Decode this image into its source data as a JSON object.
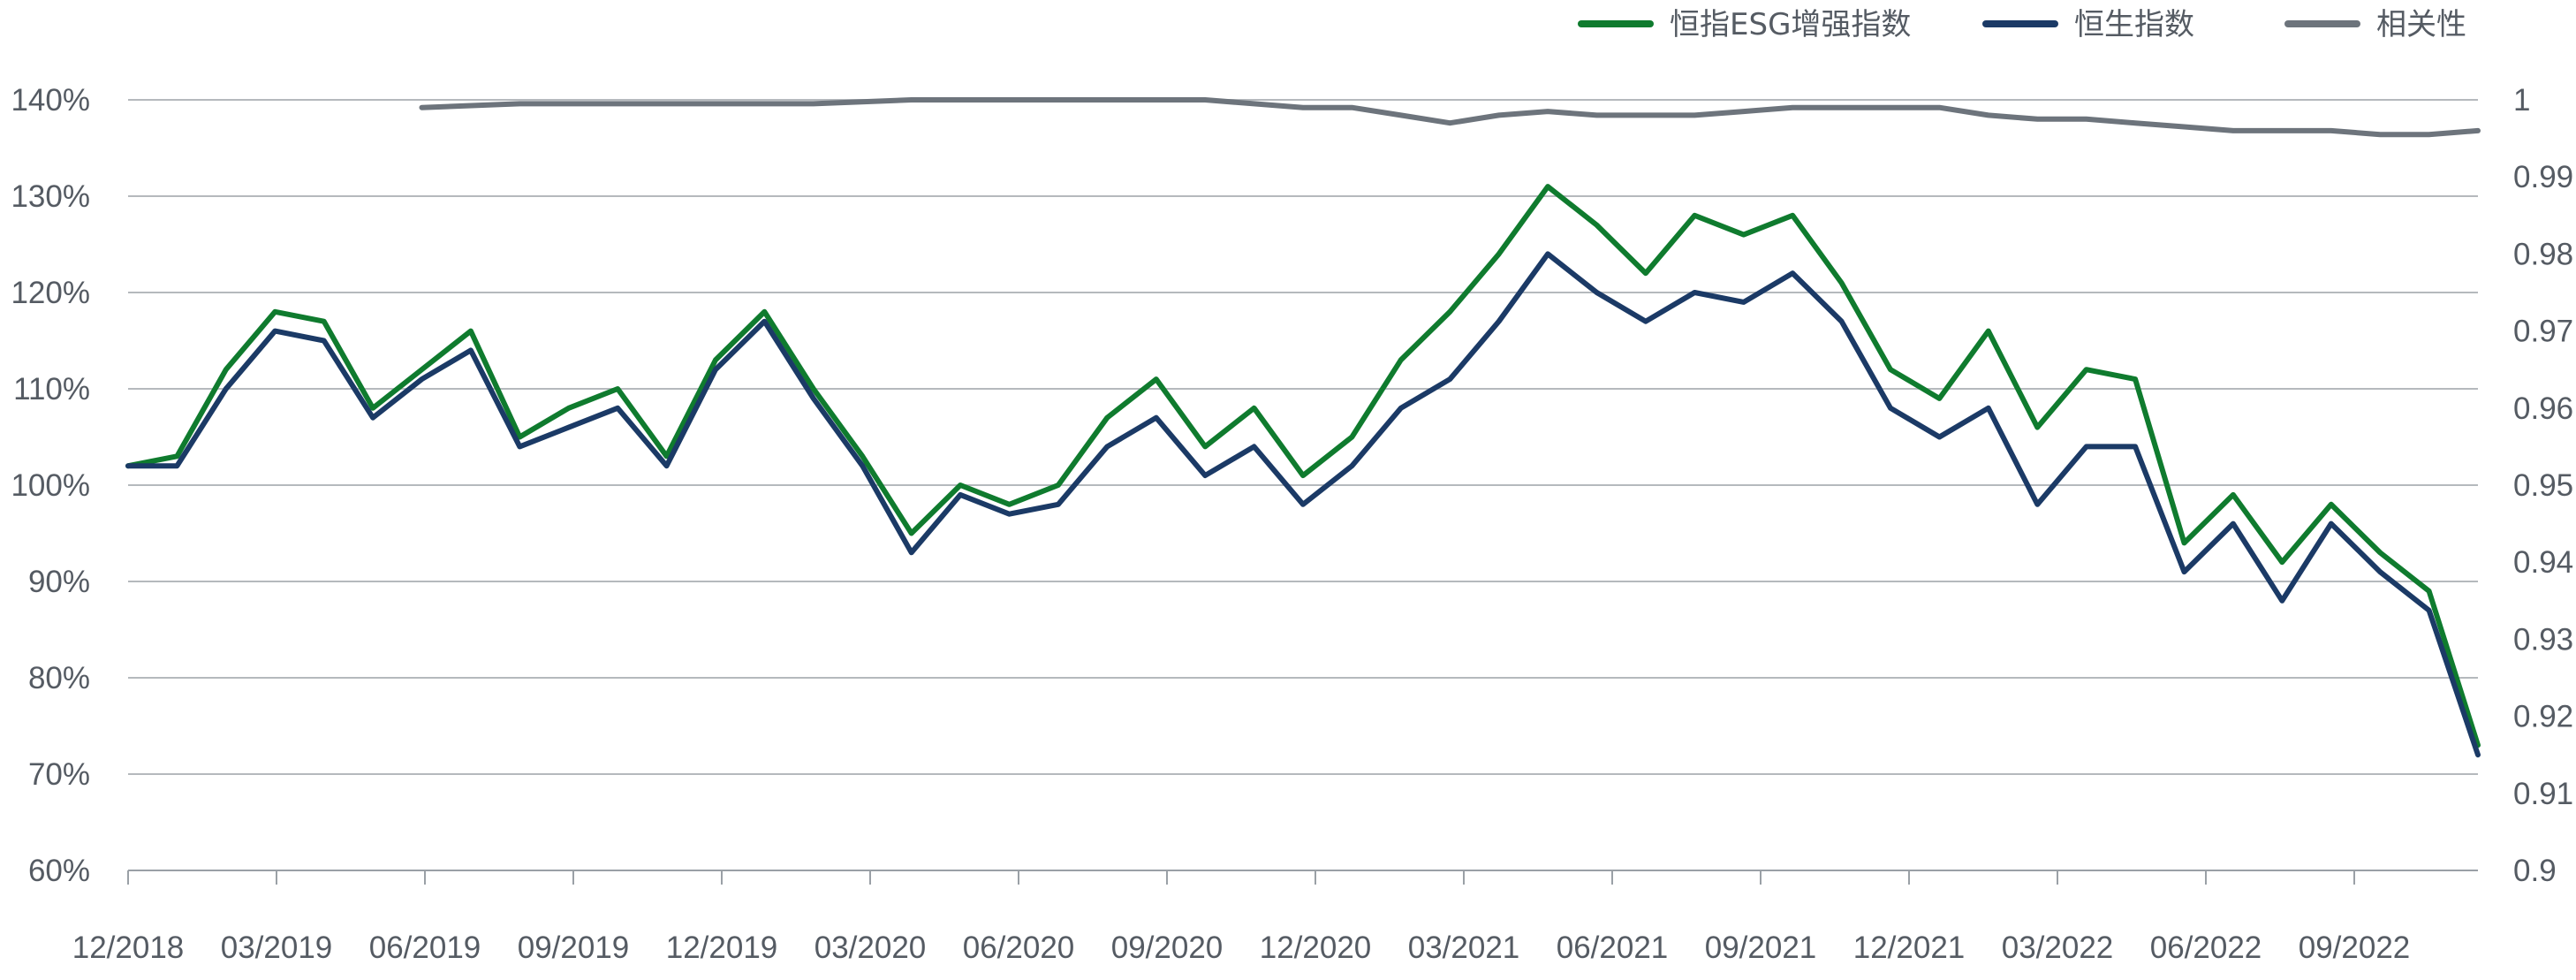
{
  "chart_data": {
    "type": "line",
    "x_tick_labels": [
      "12/2018",
      "03/2019",
      "06/2019",
      "09/2019",
      "12/2019",
      "03/2020",
      "06/2020",
      "09/2020",
      "12/2020",
      "03/2021",
      "06/2021",
      "09/2021",
      "12/2021",
      "03/2022",
      "06/2022",
      "09/2022"
    ],
    "y_left": {
      "min": 60,
      "max": 140,
      "step": 10,
      "tick_labels": [
        "60%",
        "70%",
        "80%",
        "90%",
        "100%",
        "110%",
        "120%",
        "130%",
        "140%"
      ]
    },
    "y_right": {
      "min": 0.9,
      "max": 1.0,
      "tick_labels": [
        "0.9",
        "0.91",
        "0.92",
        "0.93",
        "0.94",
        "0.95",
        "0.96",
        "0.97",
        "0.98",
        "0.99",
        "1"
      ]
    },
    "grid": "horizontal",
    "legend_position": "top-right",
    "series": [
      {
        "name": "恒指ESG增强指数",
        "axis": "left",
        "color": "#0f7b2e",
        "x": [
          0,
          1,
          2,
          3,
          4,
          5,
          6,
          7,
          8,
          9,
          10,
          11,
          12,
          13,
          14,
          15,
          16,
          17,
          18,
          19,
          20,
          21,
          22,
          23,
          24,
          25,
          26,
          27,
          28,
          29,
          30,
          31,
          32,
          33,
          34,
          35,
          36,
          37,
          38,
          39,
          40,
          41,
          42,
          43,
          44,
          45,
          46,
          47,
          48
        ],
        "values": [
          102,
          103,
          112,
          118,
          117,
          108,
          112,
          116,
          105,
          108,
          110,
          103,
          113,
          118,
          110,
          103,
          95,
          100,
          98,
          100,
          107,
          111,
          104,
          108,
          101,
          105,
          113,
          118,
          124,
          131,
          127,
          122,
          128,
          126,
          128,
          121,
          112,
          109,
          116,
          106,
          112,
          111,
          94,
          99,
          92,
          98,
          93,
          89,
          73
        ]
      },
      {
        "name": "恒生指数",
        "axis": "left",
        "color": "#1b3a66",
        "x": [
          0,
          1,
          2,
          3,
          4,
          5,
          6,
          7,
          8,
          9,
          10,
          11,
          12,
          13,
          14,
          15,
          16,
          17,
          18,
          19,
          20,
          21,
          22,
          23,
          24,
          25,
          26,
          27,
          28,
          29,
          30,
          31,
          32,
          33,
          34,
          35,
          36,
          37,
          38,
          39,
          40,
          41,
          42,
          43,
          44,
          45,
          46,
          47,
          48
        ],
        "values": [
          102,
          102,
          110,
          116,
          115,
          107,
          111,
          114,
          104,
          106,
          108,
          102,
          112,
          117,
          109,
          102,
          93,
          99,
          97,
          98,
          104,
          107,
          101,
          104,
          98,
          102,
          108,
          111,
          117,
          124,
          120,
          117,
          120,
          119,
          122,
          117,
          108,
          105,
          108,
          98,
          104,
          104,
          91,
          96,
          88,
          96,
          91,
          87,
          72
        ]
      },
      {
        "name": "相关性",
        "axis": "right",
        "color": "#6d747c",
        "x": [
          6,
          8,
          10,
          12,
          14,
          16,
          18,
          20,
          21,
          22,
          23,
          24,
          25,
          26,
          27,
          28,
          29,
          30,
          31,
          32,
          33,
          34,
          35,
          36,
          37,
          38,
          39,
          40,
          41,
          42,
          43,
          44,
          45,
          46,
          47,
          48
        ],
        "values": [
          0.999,
          0.9995,
          0.9995,
          0.9995,
          0.9995,
          1.0,
          1.0,
          1.0,
          1.0,
          1.0,
          0.9995,
          0.999,
          0.999,
          0.998,
          0.997,
          0.998,
          0.9985,
          0.998,
          0.998,
          0.998,
          0.9985,
          0.999,
          0.999,
          0.999,
          0.999,
          0.998,
          0.9975,
          0.9975,
          0.997,
          0.9965,
          0.996,
          0.996,
          0.996,
          0.9955,
          0.9955,
          0.996
        ]
      }
    ]
  }
}
